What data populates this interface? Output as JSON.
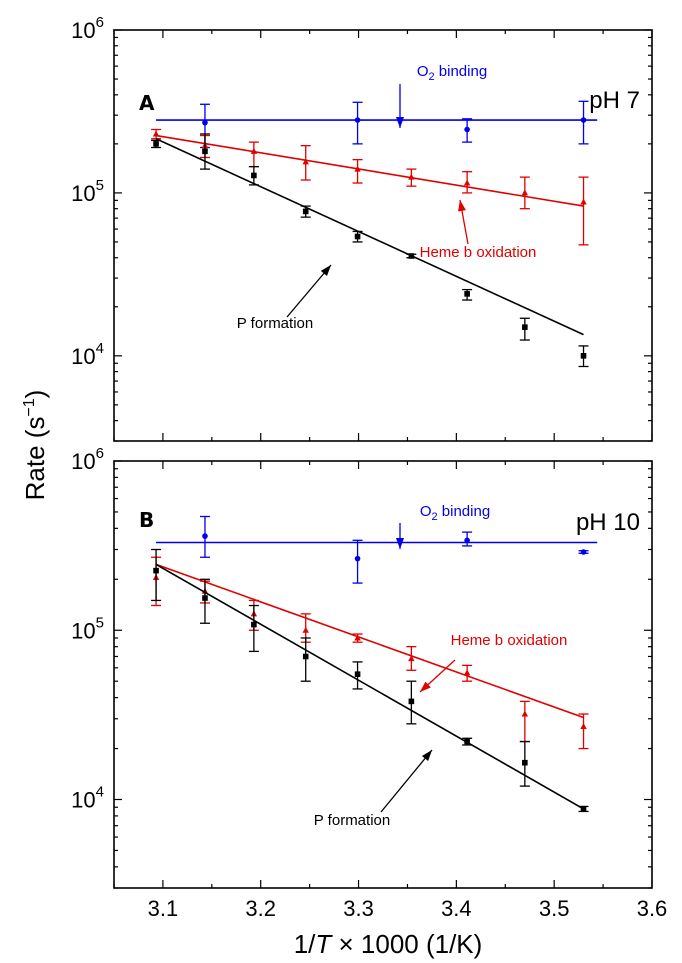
{
  "axis": {
    "xlabel_pre": "1/",
    "xlabel_var": "T",
    "xlabel_post": " × 1000 (1/K)",
    "ylabel_main": "Rate (s",
    "ylabel_sup": "−1",
    "ylabel_close": ")"
  },
  "chart_data": [
    {
      "type": "scatter",
      "panel": "A",
      "condition": "pH 7",
      "xlim": [
        3.05,
        3.6
      ],
      "ylim": [
        3000,
        1000000
      ],
      "yscale": "log",
      "xticks": [
        3.1,
        3.2,
        3.3,
        3.4,
        3.5,
        3.6
      ],
      "yticks": [
        10000,
        100000,
        1000000
      ],
      "series": [
        {
          "key": "o2",
          "color": "#0000ee",
          "marker": "circle",
          "x": [
            3.143,
            3.299,
            3.411,
            3.53
          ],
          "y": [
            270000,
            280000,
            245000,
            280000
          ],
          "err_low": [
            190000,
            200000,
            205000,
            200000
          ],
          "err_high": [
            350000,
            360000,
            285000,
            365000
          ],
          "fit": {
            "x": [
              3.093,
              3.544
            ],
            "y": [
              280000,
              280000
            ]
          }
        },
        {
          "key": "heme",
          "color": "#e00000",
          "marker": "triangle",
          "x": [
            3.093,
            3.143,
            3.193,
            3.246,
            3.299,
            3.354,
            3.411,
            3.47,
            3.53
          ],
          "y": [
            230000,
            195000,
            180000,
            155000,
            140000,
            125000,
            115000,
            100000,
            88000
          ],
          "err_low": [
            215000,
            165000,
            145000,
            120000,
            115000,
            110000,
            100000,
            80000,
            48000
          ],
          "err_high": [
            245000,
            225000,
            205000,
            195000,
            160000,
            140000,
            135000,
            125000,
            125000
          ],
          "fit": {
            "x": [
              3.093,
              3.53
            ],
            "y": [
              225000,
              83000
            ]
          }
        },
        {
          "key": "p",
          "color": "#000000",
          "marker": "square",
          "x": [
            3.093,
            3.143,
            3.193,
            3.246,
            3.299,
            3.354,
            3.411,
            3.47,
            3.53
          ],
          "y": [
            200000,
            180000,
            128000,
            77000,
            54000,
            41000,
            24000,
            15000,
            10000
          ],
          "err_low": [
            190000,
            140000,
            112000,
            71000,
            50000,
            40000,
            22000,
            12500,
            8600
          ],
          "err_high": [
            210000,
            230000,
            145000,
            83000,
            58000,
            42000,
            25500,
            17000,
            11500
          ],
          "fit": {
            "x": [
              3.093,
              3.53
            ],
            "y": [
              215000,
              13500
            ]
          }
        }
      ],
      "annotations": {
        "o2_pre": "O",
        "o2_sub": "2",
        "o2_post": " binding",
        "heme": "Heme b oxidation",
        "p": "P formation"
      }
    },
    {
      "type": "scatter",
      "panel": "B",
      "condition": "pH 10",
      "xlim": [
        3.05,
        3.6
      ],
      "ylim": [
        3000,
        1000000
      ],
      "yscale": "log",
      "xticks": [
        3.1,
        3.2,
        3.3,
        3.4,
        3.5,
        3.6
      ],
      "yticks": [
        10000,
        100000,
        1000000
      ],
      "series": [
        {
          "key": "o2",
          "color": "#0000ee",
          "marker": "circle",
          "x": [
            3.143,
            3.299,
            3.411,
            3.53
          ],
          "y": [
            360000,
            265000,
            340000,
            290000
          ],
          "err_low": [
            270000,
            190000,
            315000,
            285000
          ],
          "err_high": [
            470000,
            340000,
            380000,
            295000
          ],
          "fit": {
            "x": [
              3.093,
              3.544
            ],
            "y": [
              330000,
              330000
            ]
          }
        },
        {
          "key": "heme",
          "color": "#e00000",
          "marker": "triangle",
          "x": [
            3.093,
            3.143,
            3.193,
            3.246,
            3.299,
            3.354,
            3.411,
            3.47,
            3.53
          ],
          "y": [
            205000,
            170000,
            125000,
            100000,
            90000,
            68000,
            56000,
            32000,
            27000
          ],
          "err_low": [
            140000,
            145000,
            100000,
            85000,
            85000,
            58000,
            50000,
            22000,
            20000
          ],
          "err_high": [
            270000,
            195000,
            150000,
            125000,
            95000,
            80000,
            62000,
            38000,
            32000
          ],
          "fit": {
            "x": [
              3.093,
              3.53
            ],
            "y": [
              245000,
              30500
            ]
          }
        },
        {
          "key": "p",
          "color": "#000000",
          "marker": "square",
          "x": [
            3.093,
            3.143,
            3.193,
            3.246,
            3.299,
            3.354,
            3.411,
            3.47,
            3.53
          ],
          "y": [
            225000,
            155000,
            108000,
            70000,
            55000,
            38000,
            22000,
            16500,
            8800
          ],
          "err_low": [
            150000,
            110000,
            75000,
            50000,
            45000,
            28000,
            21000,
            12000,
            8500
          ],
          "err_high": [
            300000,
            200000,
            140000,
            90000,
            65000,
            50000,
            23000,
            22000,
            9100
          ],
          "fit": {
            "x": [
              3.093,
              3.53
            ],
            "y": [
              245000,
              8800
            ]
          }
        }
      ],
      "annotations": {
        "o2_pre": "O",
        "o2_sub": "2",
        "o2_post": " binding",
        "heme": "Heme b oxidation",
        "p": "P formation"
      }
    }
  ]
}
